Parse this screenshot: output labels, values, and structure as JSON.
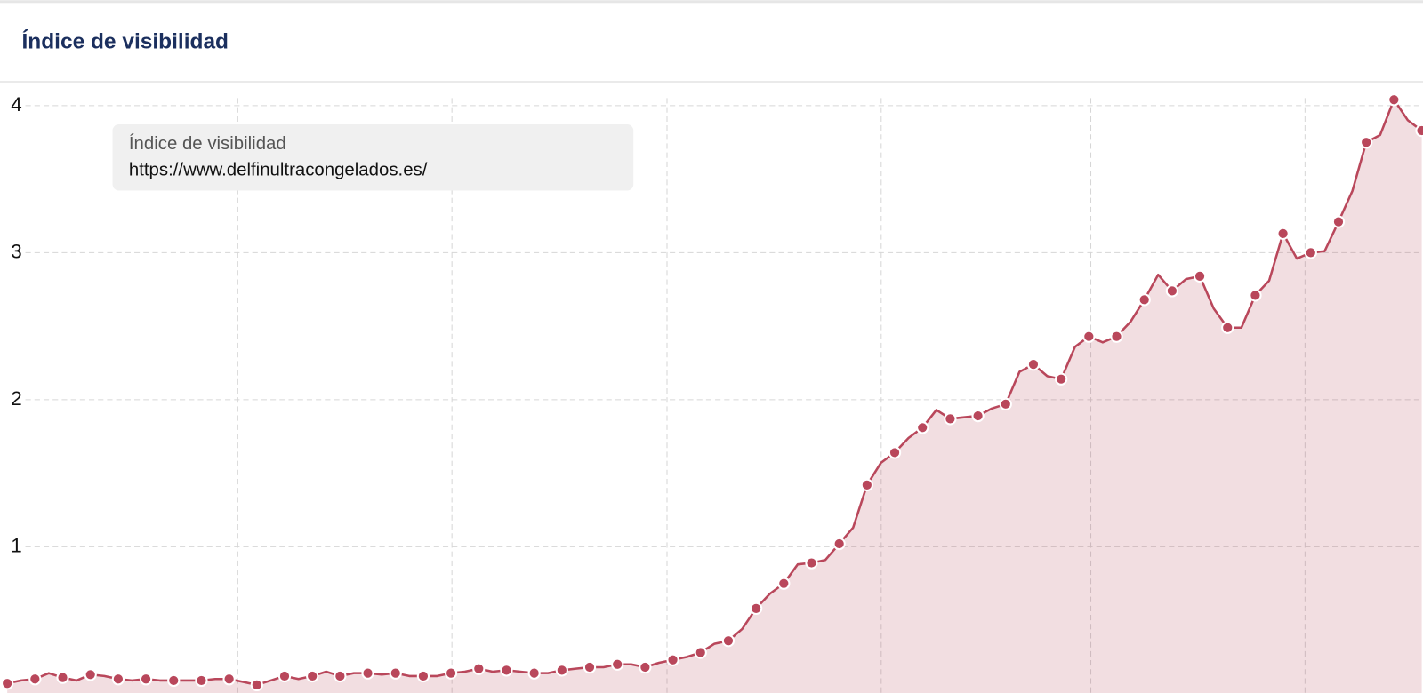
{
  "chart_data": {
    "type": "line",
    "title": "Índice de visibilidad",
    "legend_title": "Índice de visibilidad",
    "series": [
      {
        "name": "https://www.delfinultracongelados.es/",
        "color": "#b9475b",
        "values": [
          0.07,
          0.09,
          0.1,
          0.14,
          0.11,
          0.09,
          0.13,
          0.12,
          0.1,
          0.09,
          0.1,
          0.09,
          0.09,
          0.09,
          0.09,
          0.1,
          0.1,
          0.08,
          0.06,
          0.09,
          0.12,
          0.1,
          0.12,
          0.15,
          0.12,
          0.14,
          0.14,
          0.13,
          0.14,
          0.12,
          0.12,
          0.12,
          0.14,
          0.15,
          0.17,
          0.15,
          0.16,
          0.15,
          0.14,
          0.14,
          0.16,
          0.17,
          0.18,
          0.18,
          0.2,
          0.2,
          0.18,
          0.21,
          0.23,
          0.25,
          0.28,
          0.34,
          0.36,
          0.44,
          0.58,
          0.68,
          0.75,
          0.88,
          0.89,
          0.91,
          1.02,
          1.13,
          1.42,
          1.57,
          1.64,
          1.74,
          1.81,
          1.93,
          1.87,
          1.88,
          1.89,
          1.94,
          1.97,
          2.19,
          2.24,
          2.16,
          2.14,
          2.36,
          2.43,
          2.39,
          2.43,
          2.53,
          2.68,
          2.85,
          2.74,
          2.82,
          2.84,
          2.62,
          2.49,
          2.49,
          2.71,
          2.81,
          3.13,
          2.96,
          3.0,
          3.01,
          3.21,
          3.42,
          3.75,
          3.8,
          4.04,
          3.9,
          3.83
        ]
      }
    ],
    "ylim": [
      0,
      4.15
    ],
    "yticks": [
      1,
      2,
      3,
      4
    ],
    "grid": true
  }
}
